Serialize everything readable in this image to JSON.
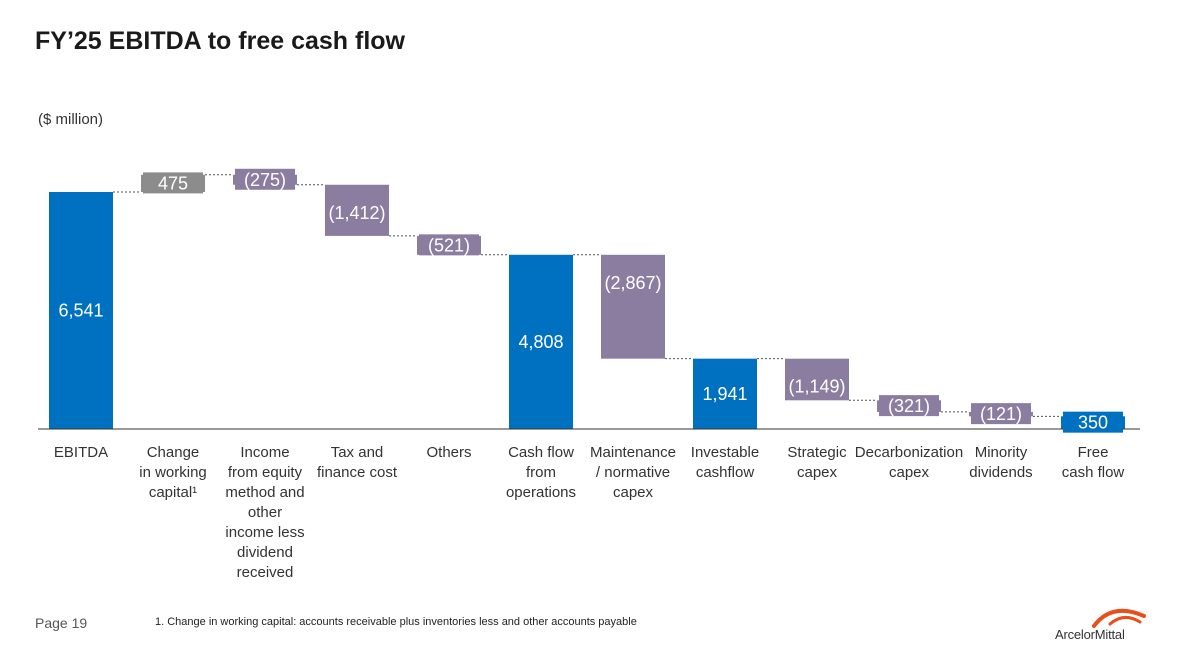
{
  "title": "FY’25 EBITDA to free cash flow",
  "unit_label": "($ million)",
  "footer": {
    "page": "Page 19",
    "note": "1. Change in working capital: accounts receivable plus inventories less and other accounts payable"
  },
  "logo": {
    "text": "ArcelorMittal",
    "icon": "arcelormittal-swoosh-logo",
    "color": "#e84e1b"
  },
  "colors": {
    "total": "#0070c0",
    "increase": "#8c8c8c",
    "decrease": "#8b7da0",
    "label_light": "#ffffff"
  },
  "chart_data": {
    "type": "waterfall",
    "unit": "$ million",
    "ylim": [
      0,
      7000
    ],
    "grid": false,
    "steps": [
      {
        "label_lines": [
          "EBITDA"
        ],
        "kind": "total",
        "value": 6541,
        "display": "6,541"
      },
      {
        "label_lines": [
          "Change",
          "in working",
          "capital¹"
        ],
        "kind": "increase",
        "value": 475,
        "display": "475"
      },
      {
        "label_lines": [
          "Income",
          "from equity",
          "method and",
          "other",
          "income less",
          "dividend",
          "received"
        ],
        "kind": "decrease",
        "value": -275,
        "display": "(275)"
      },
      {
        "label_lines": [
          "Tax and",
          "finance cost"
        ],
        "kind": "decrease",
        "value": -1412,
        "display": "(1,412)"
      },
      {
        "label_lines": [
          "Others"
        ],
        "kind": "decrease",
        "value": -521,
        "display": "(521)"
      },
      {
        "label_lines": [
          "Cash flow",
          "from",
          "operations"
        ],
        "kind": "total",
        "value": 4808,
        "display": "4,808"
      },
      {
        "label_lines": [
          "Maintenance",
          "/ normative",
          "capex"
        ],
        "kind": "decrease",
        "value": -2867,
        "display": "(2,867)"
      },
      {
        "label_lines": [
          "Investable",
          "cashflow"
        ],
        "kind": "total",
        "value": 1941,
        "display": "1,941"
      },
      {
        "label_lines": [
          "Strategic",
          "capex"
        ],
        "kind": "decrease",
        "value": -1149,
        "display": "(1,149)"
      },
      {
        "label_lines": [
          "Decarbonization",
          "capex"
        ],
        "kind": "decrease",
        "value": -321,
        "display": "(321)"
      },
      {
        "label_lines": [
          "Minority",
          "dividends"
        ],
        "kind": "decrease",
        "value": -121,
        "display": "(121)"
      },
      {
        "label_lines": [
          "Free",
          "cash flow"
        ],
        "kind": "total",
        "value": 350,
        "display": "350"
      }
    ]
  }
}
